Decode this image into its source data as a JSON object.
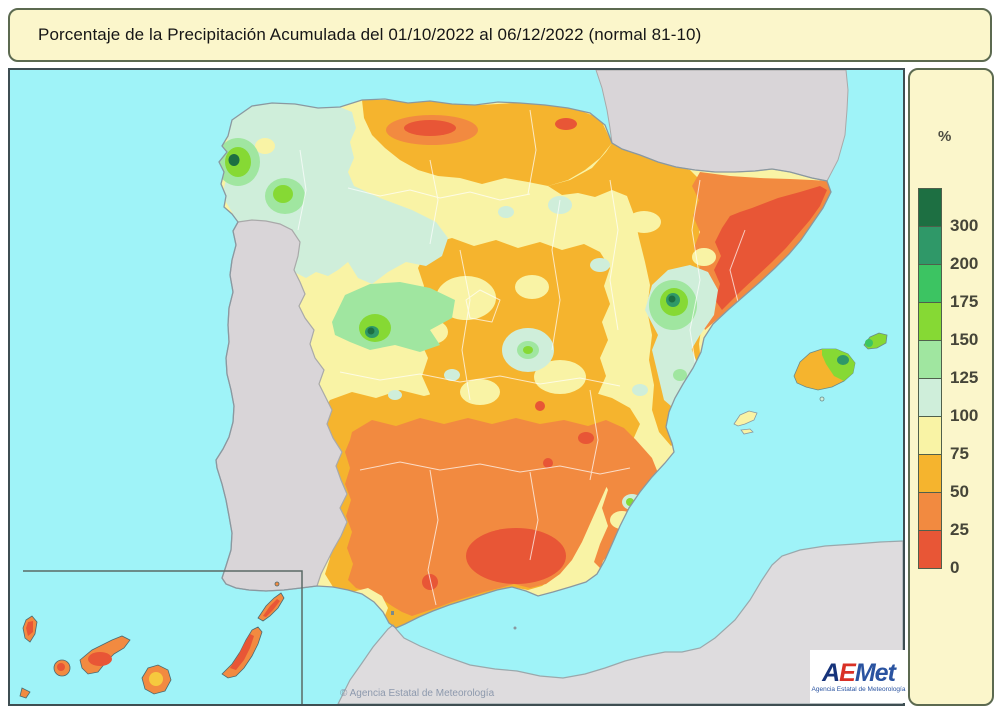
{
  "title": "Porcentaje de la Precipitación Acumulada del 01/10/2022 al 06/12/2022 (normal 81-10)",
  "legend": {
    "unit": "%",
    "bands": [
      {
        "label": "300",
        "color": "#1d6f42"
      },
      {
        "label": "200",
        "color": "#2f9868"
      },
      {
        "label": "175",
        "color": "#3cc462"
      },
      {
        "label": "150",
        "color": "#86d934"
      },
      {
        "label": "125",
        "color": "#a0e6a0"
      },
      {
        "label": "100",
        "color": "#cfeeda"
      },
      {
        "label": "75",
        "color": "#f9f3a5"
      },
      {
        "label": "50",
        "color": "#f5b42e"
      },
      {
        "label": "25",
        "color": "#f28a40"
      },
      {
        "label": "0",
        "color": "#e85636"
      }
    ]
  },
  "map": {
    "attribution": "© Agencia Estatal de Meteorología",
    "colors": {
      "sea": "#9ff3f8",
      "neighbor_land": "#d9d5d8",
      "africa_land": "#dedcde",
      "spain_base": "#f9f3a5"
    }
  },
  "logo": {
    "part_a": "A",
    "part_e": "E",
    "part_met": "Met",
    "subtitle": "Agencia Estatal de Meteorología"
  }
}
